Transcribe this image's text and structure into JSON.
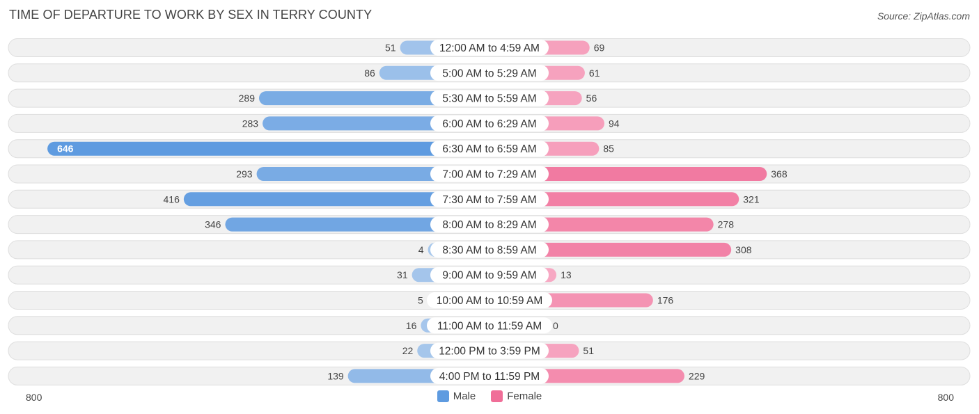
{
  "header": {
    "title": "TIME OF DEPARTURE TO WORK BY SEX IN TERRY COUNTY",
    "source": "Source: ZipAtlas.com"
  },
  "legend": {
    "male_label": "Male",
    "female_label": "Female"
  },
  "axis": {
    "left_label": "800",
    "right_label": "800"
  },
  "colors": {
    "male_light": "#a9c8ec",
    "male_dark": "#5e9be0",
    "female_light": "#f7aac4",
    "female_dark": "#f06e98",
    "row_bg": "#f1f1f1",
    "row_border": "#dedede"
  },
  "chart_data": {
    "type": "bar",
    "orientation": "horizontal-diverging",
    "title": "TIME OF DEPARTURE TO WORK BY SEX IN TERRY COUNTY",
    "xlim": [
      -800,
      800
    ],
    "categories": [
      "12:00 AM to 4:59 AM",
      "5:00 AM to 5:29 AM",
      "5:30 AM to 5:59 AM",
      "6:00 AM to 6:29 AM",
      "6:30 AM to 6:59 AM",
      "7:00 AM to 7:29 AM",
      "7:30 AM to 7:59 AM",
      "8:00 AM to 8:29 AM",
      "8:30 AM to 8:59 AM",
      "9:00 AM to 9:59 AM",
      "10:00 AM to 10:59 AM",
      "11:00 AM to 11:59 AM",
      "12:00 PM to 3:59 PM",
      "4:00 PM to 11:59 PM"
    ],
    "series": [
      {
        "name": "Male",
        "values": [
          51,
          86,
          289,
          283,
          646,
          293,
          416,
          346,
          4,
          31,
          5,
          16,
          22,
          139
        ]
      },
      {
        "name": "Female",
        "values": [
          69,
          61,
          56,
          94,
          85,
          368,
          321,
          278,
          308,
          13,
          176,
          0,
          51,
          229
        ]
      }
    ],
    "legend_position": "bottom-center"
  }
}
